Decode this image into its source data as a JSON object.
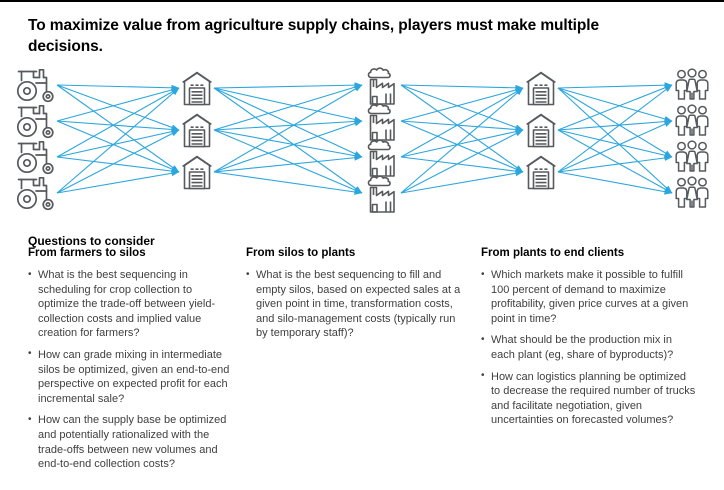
{
  "page": {
    "title": "To maximize value from agriculture supply chains, players must make multiple decisions."
  },
  "diagram": {
    "line_color": "#2CA6DE",
    "icon_color": "#565A5E",
    "columns": [
      {
        "id": "farmers",
        "icon": "tractor-icon",
        "count": 4
      },
      {
        "id": "collection-silos",
        "icon": "silo-icon",
        "count": 3
      },
      {
        "id": "plants",
        "icon": "plant-icon",
        "count": 4
      },
      {
        "id": "distribution-silos",
        "icon": "silo-icon",
        "count": 3
      },
      {
        "id": "end-clients",
        "icon": "clients-icon",
        "count": 4
      }
    ],
    "flow": "full-mesh arrows left to right between adjacent columns"
  },
  "questions": {
    "heading": "Questions to consider",
    "columns": [
      {
        "header": "From farmers to silos",
        "bullets": [
          "What is the best sequencing in scheduling for crop collection to optimize the trade-off between yield-collection costs and implied value creation for farmers?",
          "How can grade mixing in intermediate silos be optimized, given an end-to-end perspective on expected profit for each incremental sale?",
          "How can the supply base be optimized and potentially rationalized with the trade-offs between new volumes and end-to-end collection costs?"
        ]
      },
      {
        "header": "From silos to plants",
        "bullets": [
          "What is the best sequencing to fill and empty silos, based on expected sales at a given point in time, transformation costs, and silo-management costs (typically run by temporary staff)?"
        ]
      },
      {
        "header": "From plants to end clients",
        "bullets": [
          "Which markets make it possible to fulfill 100 percent of demand to maximize profitability, given price curves at a given point in time?",
          "What should be the production mix in each plant (eg, share of byproducts)?",
          "How can logistics planning be optimized to decrease the required number of trucks and facilitate negotiation, given uncertainties on forecasted volumes?"
        ]
      }
    ]
  }
}
